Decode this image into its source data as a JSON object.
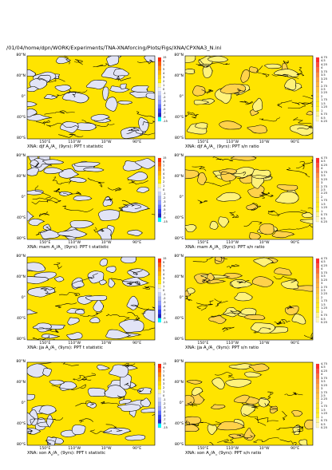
{
  "header": "/01/04/home/dpn/WORK/Experiments/TNA-XNAforcing/Plots/Figs/XNA/CPXNA3_N.ini",
  "lat_labels": [
    "80°N",
    "40°N",
    "0°",
    "40°S",
    "80°S"
  ],
  "lon_labels": [
    "150°E",
    "110°W",
    "10°W",
    "90°E"
  ],
  "colors": {
    "land": "#f7f08a",
    "field_positive": "#ffe400",
    "field_negative": "#e2e4f6",
    "contour": "#000000",
    "tstat_bar": [
      "#ff2400",
      "#ff5a00",
      "#ff8a00",
      "#ffb000",
      "#ffd000",
      "#ffe800",
      "#fff5a0",
      "#eef0fa",
      "#c8d0f5",
      "#a8b4f0",
      "#8c98ff",
      "#6070ff",
      "#3040f0",
      "#2020c0",
      "#00ffff"
    ],
    "sn_bar": [
      "#ff2a2a",
      "#ff4a3a",
      "#ff6a3a",
      "#ff8a40",
      "#ffa040",
      "#ffb040",
      "#ffc040",
      "#ffd040",
      "#ffdc30",
      "#ffe820",
      "#fff030",
      "#fff590",
      "#fff8c0"
    ]
  },
  "tstat_colorbar_labels": [
    "15",
    "9",
    "7",
    "5",
    "4",
    "3",
    "2",
    "1",
    "0",
    "-1",
    "-2",
    "-3",
    "-4",
    "-5",
    "-7",
    "-9",
    "-15"
  ],
  "sn_colorbar_labels": [
    "4.75",
    "4.5",
    "4.25",
    "4",
    "3.75",
    "3.5",
    "3.25",
    "3",
    "2.75",
    "2.5",
    "2.25",
    "2",
    "1.75",
    "1.5",
    "1.25",
    "1",
    "0.75",
    "0.5",
    "0.25"
  ],
  "chart_data": [
    {
      "type": "heatmap",
      "season": "djf",
      "quantity": "t statistic",
      "title_prefix": "XNA: djf A",
      "title_suffix": "(9yrs): PPT t statistic"
    },
    {
      "type": "heatmap",
      "season": "djf",
      "quantity": "s/n ratio",
      "title_prefix": "XNA: djf A",
      "title_suffix": "(9yrs): PPT s/n ratio"
    },
    {
      "type": "heatmap",
      "season": "mam",
      "quantity": "t statistic",
      "title_prefix": "XNA: mam A",
      "title_suffix": "(9yrs): PPT t statistic"
    },
    {
      "type": "heatmap",
      "season": "mam",
      "quantity": "s/n ratio",
      "title_prefix": "XNA: mam A",
      "title_suffix": "(9yrs): PPT s/n ratio"
    },
    {
      "type": "heatmap",
      "season": "jja",
      "quantity": "t statistic",
      "title_prefix": "XNA: jja A",
      "title_suffix": "(9yrs): PPT t statistic"
    },
    {
      "type": "heatmap",
      "season": "jja",
      "quantity": "s/n ratio",
      "title_prefix": "XNA: jja A",
      "title_suffix": "(9yrs): PPT s/n ratio"
    },
    {
      "type": "heatmap",
      "season": "son",
      "quantity": "t statistic",
      "title_prefix": "XNA: son A",
      "title_suffix": "(9yrs): PPT t statistic"
    },
    {
      "type": "heatmap",
      "season": "son",
      "quantity": "s/n ratio",
      "title_prefix": "XNA: son A",
      "title_suffix": "(9yrs): PPT s/n ratio"
    }
  ]
}
